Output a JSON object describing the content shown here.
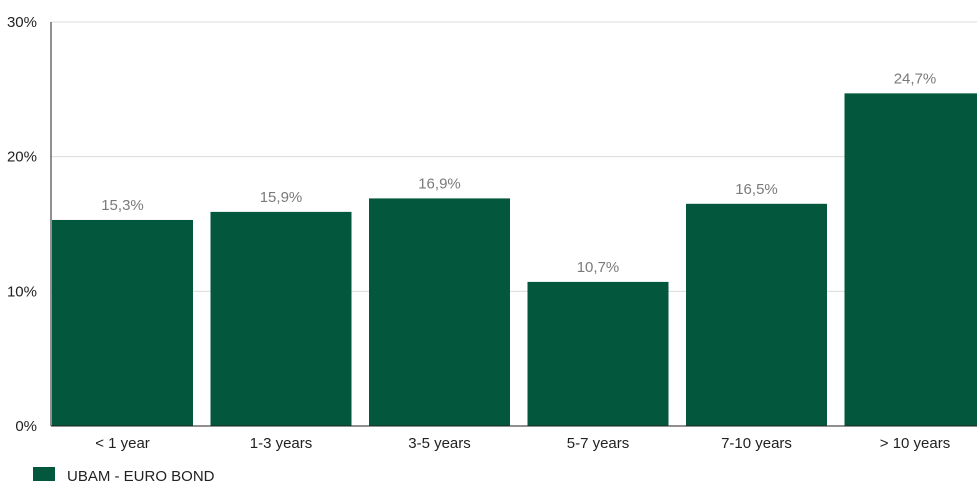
{
  "chart_data": {
    "type": "bar",
    "categories": [
      "< 1 year",
      "1-3 years",
      "3-5 years",
      "5-7 years",
      "7-10 years",
      "> 10 years"
    ],
    "series": [
      {
        "name": "UBAM - EURO BOND",
        "values": [
          15.3,
          15.9,
          16.9,
          10.7,
          16.5,
          24.7
        ],
        "data_labels": [
          "15,3%",
          "15,9%",
          "16,9%",
          "10,7%",
          "16,5%",
          "24,7%"
        ],
        "color": "#02573c"
      }
    ],
    "ylim": [
      0,
      30
    ],
    "yticks": [
      0,
      10,
      20,
      30
    ],
    "ytick_labels": [
      "0%",
      "10%",
      "20%",
      "30%"
    ],
    "grid": true,
    "legend_position": "bottom-left",
    "title": "",
    "xlabel": "",
    "ylabel": ""
  }
}
